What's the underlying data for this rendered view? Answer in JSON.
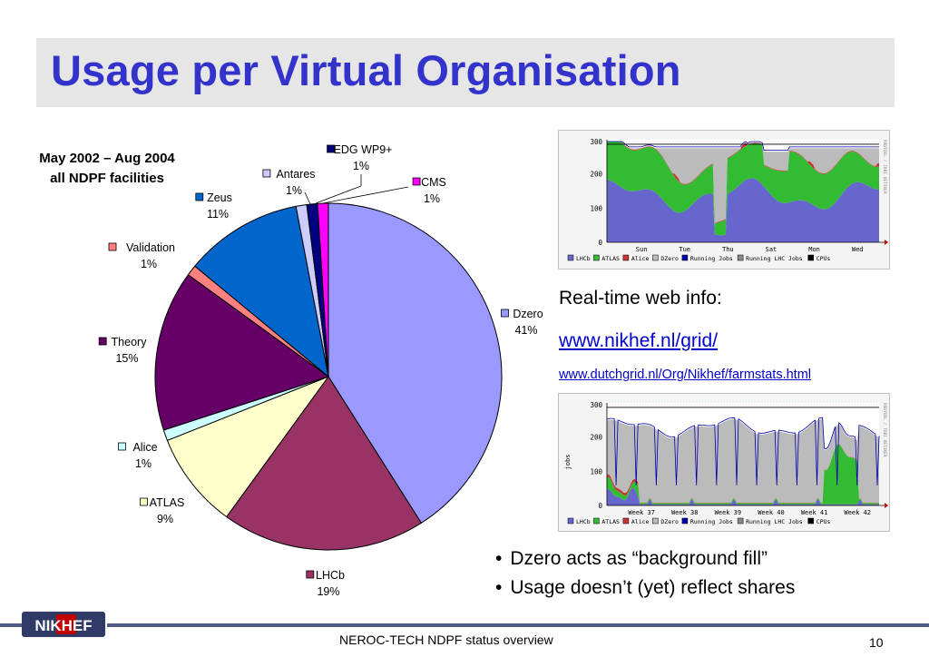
{
  "slide": {
    "title": "Usage per Virtual Organisation",
    "chart_title_line1": "May 2002 – Aug 2004",
    "chart_title_line2": "all NDPF facilities",
    "realtime_label": "Real-time web info:",
    "link1": "www.nikhef.nl/grid/",
    "link2": "www.dutchgrid.nl/Org/Nikhef/farmstats.html",
    "bullets": [
      "Dzero acts as “background fill”",
      "Usage doesn’t (yet) reflect shares"
    ],
    "footer": "NEROC-TECH NDPF status overview",
    "page_number": "10",
    "logo_text": "NIKHEF"
  },
  "graphs": {
    "top": {
      "y_ticks": [
        "300",
        "200",
        "100",
        "0"
      ],
      "x_ticks": [
        "Sun",
        "Tue",
        "Thu",
        "Sat",
        "Mon",
        "Wed"
      ],
      "side_label": "RRDTOOL / TOBI OETIKER",
      "y_label": ""
    },
    "bottom": {
      "y_ticks": [
        "300",
        "200",
        "100",
        "0"
      ],
      "x_ticks": [
        "Week 37",
        "Week 38",
        "Week 39",
        "Week 40",
        "Week 41",
        "Week 42"
      ],
      "side_label": "RRDTOOL / TOBI OETIKER",
      "y_label": "jobs"
    },
    "legend": [
      {
        "label": "LHCb",
        "color": "#6666cc"
      },
      {
        "label": "ATLAS",
        "color": "#33bb33"
      },
      {
        "label": "Alice",
        "color": "#cc3333"
      },
      {
        "label": "DZero",
        "color": "#bbbbbb"
      },
      {
        "label": "Running Jobs",
        "color": "#0000aa"
      },
      {
        "label": "Running LHC Jobs",
        "color": "#888888"
      },
      {
        "label": "CPUs",
        "color": "#000000"
      }
    ]
  },
  "chart_data": {
    "type": "pie",
    "title": "May 2002 – Aug 2004 all NDPF facilities",
    "slices": [
      {
        "name": "Dzero",
        "value": 41,
        "label": "41%",
        "color": "#9999ff"
      },
      {
        "name": "LHCb",
        "value": 19,
        "label": "19%",
        "color": "#993366"
      },
      {
        "name": "ATLAS",
        "value": 9,
        "label": "9%",
        "color": "#ffffcc"
      },
      {
        "name": "Alice",
        "value": 1,
        "label": "1%",
        "color": "#ccffff"
      },
      {
        "name": "Theory",
        "value": 15,
        "label": "15%",
        "color": "#660066"
      },
      {
        "name": "Validation",
        "value": 1,
        "label": "1%",
        "color": "#ff8080"
      },
      {
        "name": "Zeus",
        "value": 11,
        "label": "11%",
        "color": "#0066cc"
      },
      {
        "name": "Antares",
        "value": 1,
        "label": "1%",
        "color": "#ccccff"
      },
      {
        "name": "EDG WP9+",
        "value": 1,
        "label": "1%",
        "color": "#000080"
      },
      {
        "name": "CMS",
        "value": 1,
        "label": "1%",
        "color": "#ff00ff"
      }
    ]
  }
}
